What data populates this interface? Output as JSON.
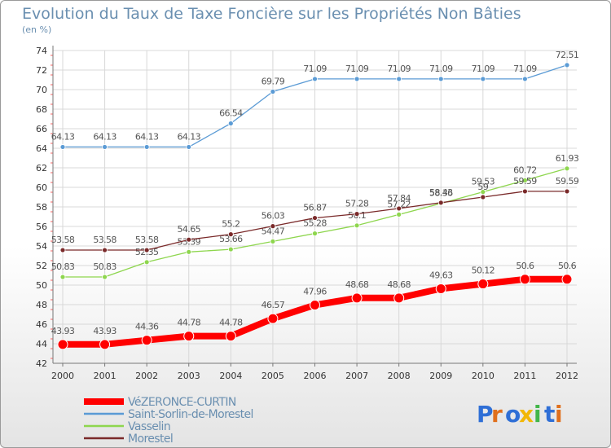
{
  "chart_data": {
    "type": "line",
    "title": "Evolution du Taux de Taxe Foncière sur les Propriétés Non Bâties",
    "subtitle": "(en %)",
    "x": [
      2000,
      2001,
      2002,
      2003,
      2004,
      2005,
      2006,
      2007,
      2008,
      2009,
      2010,
      2011,
      2012
    ],
    "ylim": [
      42,
      74
    ],
    "yticks": [
      42,
      44,
      46,
      48,
      50,
      52,
      54,
      56,
      58,
      60,
      62,
      64,
      66,
      68,
      70,
      72,
      74
    ],
    "grid": true,
    "legend_position": "bottom-left",
    "series": [
      {
        "name": "Saint-Sorlin-de-Morestel",
        "color": "#5b9bd5",
        "values": [
          64.13,
          64.13,
          64.13,
          64.13,
          66.54,
          69.79,
          71.09,
          71.09,
          71.09,
          71.09,
          71.09,
          71.09,
          72.51
        ],
        "labels": [
          "64.13",
          "64.13",
          "64.13",
          "64.13",
          "66.54",
          "69.79",
          "71.09",
          "71.09",
          "71.09",
          "71.09",
          "71.09",
          "71.09",
          "72.51"
        ]
      },
      {
        "name": "Vasselin",
        "color": "#8ed64e",
        "values": [
          50.83,
          50.83,
          52.35,
          53.39,
          53.66,
          54.47,
          55.28,
          56.1,
          57.22,
          58.36,
          59.53,
          60.72,
          61.93
        ],
        "labels": [
          "50.83",
          "50.83",
          "52.35",
          "53.39",
          "53.66",
          "54.47",
          "55.28",
          "56.1",
          "57.22",
          "58.36",
          "59.53",
          "60.72",
          "61.93"
        ]
      },
      {
        "name": "Morestel",
        "color": "#7a2a2a",
        "values": [
          53.58,
          53.58,
          53.58,
          54.65,
          55.2,
          56.03,
          56.87,
          57.28,
          57.84,
          58.43,
          59,
          59.59,
          59.59
        ],
        "labels": [
          "53.58",
          "53.58",
          "53.58",
          "54.65",
          "55.2",
          "56.03",
          "56.87",
          "57.28",
          "57.84",
          "58.43",
          "59",
          "59.59",
          "59.59"
        ]
      },
      {
        "name": "VéZERONCE-CURTIN",
        "color": "#ff0000",
        "values": [
          43.93,
          43.93,
          44.36,
          44.78,
          44.78,
          46.57,
          47.96,
          48.68,
          48.68,
          49.63,
          50.12,
          50.6,
          50.6
        ],
        "labels": [
          "43.93",
          "43.93",
          "44.36",
          "44.78",
          "44.78",
          "46.57",
          "47.96",
          "48.68",
          "48.68",
          "49.63",
          "50.12",
          "50.6",
          "50.6"
        ]
      }
    ],
    "legend_order": [
      "VéZERONCE-CURTIN",
      "Saint-Sorlin-de-Morestel",
      "Vasselin",
      "Morestel"
    ]
  },
  "logo": {
    "text": "Proxiti"
  }
}
